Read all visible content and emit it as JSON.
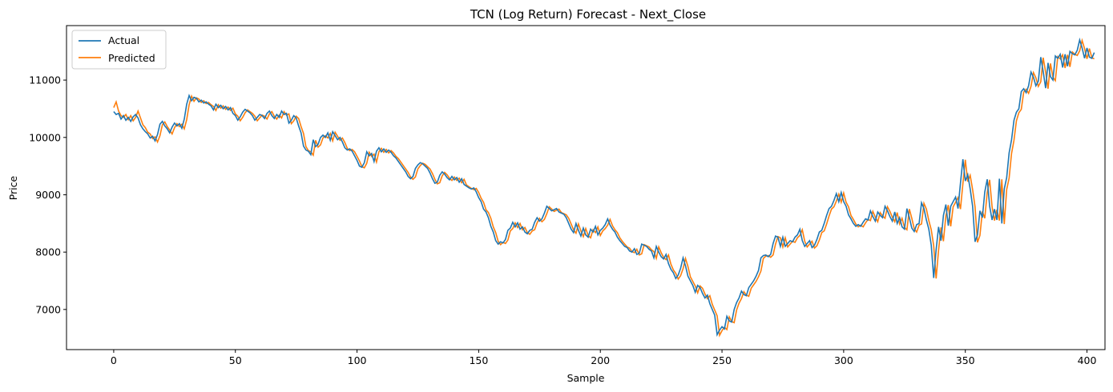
{
  "chart_data": {
    "type": "line",
    "title": "TCN (Log Return) Forecast - Next_Close",
    "xlabel": "Sample",
    "ylabel": "Price",
    "xlim": [
      -19.4,
      407.4
    ],
    "ylim": [
      6300,
      11950
    ],
    "xticks": [
      0,
      50,
      100,
      150,
      200,
      250,
      300,
      350,
      400
    ],
    "yticks": [
      7000,
      8000,
      9000,
      10000,
      11000
    ],
    "grid": false,
    "legend_position": "top-left",
    "colors": {
      "Actual": "#1f77b4",
      "Predicted": "#ff7f0e"
    },
    "series": [
      {
        "name": "Actual",
        "x_start": 0,
        "values": [
          10450,
          10400,
          10420,
          10320,
          10380,
          10300,
          10350,
          10280,
          10360,
          10400,
          10340,
          10220,
          10150,
          10100,
          10060,
          9990,
          10020,
          9940,
          10050,
          10230,
          10280,
          10200,
          10150,
          10080,
          10180,
          10250,
          10200,
          10240,
          10160,
          10320,
          10580,
          10730,
          10640,
          10700,
          10680,
          10620,
          10650,
          10600,
          10620,
          10580,
          10550,
          10480,
          10580,
          10520,
          10560,
          10500,
          10540,
          10480,
          10520,
          10420,
          10380,
          10300,
          10360,
          10440,
          10490,
          10460,
          10430,
          10380,
          10300,
          10350,
          10400,
          10380,
          10330,
          10420,
          10460,
          10380,
          10330,
          10400,
          10350,
          10460,
          10400,
          10420,
          10250,
          10300,
          10380,
          10340,
          10200,
          10080,
          9850,
          9780,
          9760,
          9700,
          9960,
          9840,
          9880,
          10000,
          10040,
          10000,
          10080,
          9950,
          10100,
          10030,
          9960,
          10000,
          9920,
          9820,
          9780,
          9800,
          9760,
          9680,
          9600,
          9500,
          9480,
          9560,
          9750,
          9680,
          9720,
          9580,
          9760,
          9820,
          9750,
          9800,
          9740,
          9780,
          9740,
          9680,
          9640,
          9580,
          9520,
          9460,
          9400,
          9320,
          9280,
          9320,
          9460,
          9520,
          9560,
          9540,
          9500,
          9460,
          9380,
          9280,
          9200,
          9220,
          9340,
          9400,
          9360,
          9300,
          9260,
          9320,
          9260,
          9300,
          9220,
          9280,
          9180,
          9150,
          9120,
          9100,
          9120,
          9050,
          8950,
          8880,
          8750,
          8700,
          8600,
          8450,
          8350,
          8200,
          8140,
          8180,
          8160,
          8220,
          8380,
          8420,
          8520,
          8440,
          8510,
          8400,
          8440,
          8350,
          8320,
          8380,
          8400,
          8520,
          8600,
          8540,
          8580,
          8680,
          8800,
          8760,
          8720,
          8740,
          8760,
          8700,
          8680,
          8660,
          8600,
          8500,
          8400,
          8340,
          8500,
          8380,
          8280,
          8420,
          8300,
          8260,
          8400,
          8350,
          8450,
          8300,
          8380,
          8420,
          8480,
          8580,
          8470,
          8400,
          8350,
          8260,
          8200,
          8150,
          8100,
          8080,
          8020,
          8000,
          8060,
          7960,
          7980,
          8140,
          8120,
          8100,
          8050,
          8020,
          7900,
          8100,
          8000,
          7920,
          7880,
          7960,
          7800,
          7700,
          7640,
          7540,
          7600,
          7720,
          7900,
          7760,
          7580,
          7500,
          7420,
          7300,
          7420,
          7380,
          7280,
          7200,
          7250,
          7100,
          7000,
          6900,
          6560,
          6640,
          6700,
          6660,
          6880,
          6800,
          6780,
          7000,
          7120,
          7200,
          7320,
          7260,
          7240,
          7380,
          7440,
          7500,
          7580,
          7680,
          7900,
          7940,
          7950,
          7920,
          7960,
          8150,
          8280,
          8260,
          8100,
          8260,
          8100,
          8150,
          8200,
          8180,
          8260,
          8300,
          8400,
          8200,
          8100,
          8150,
          8200,
          8080,
          8120,
          8220,
          8350,
          8380,
          8500,
          8640,
          8760,
          8800,
          8900,
          9020,
          8880,
          9040,
          8880,
          8800,
          8650,
          8580,
          8500,
          8450,
          8480,
          8450,
          8520,
          8580,
          8560,
          8720,
          8620,
          8540,
          8700,
          8640,
          8600,
          8800,
          8720,
          8620,
          8540,
          8700,
          8500,
          8600,
          8440,
          8400,
          8760,
          8600,
          8420,
          8360,
          8480,
          8500,
          8860,
          8760,
          8560,
          8400,
          8120,
          7550,
          8040,
          8440,
          8200,
          8640,
          8830,
          8460,
          8800,
          8880,
          8960,
          8760,
          9200,
          9620,
          9240,
          9350,
          9100,
          8800,
          8180,
          8300,
          8720,
          8600,
          9050,
          9270,
          8800,
          8560,
          8750,
          8560,
          9280,
          8500,
          9100,
          9300,
          9730,
          9960,
          10300,
          10440,
          10500,
          10800,
          10850,
          10780,
          10900,
          11140,
          11050,
          10900,
          10980,
          11400,
          11150,
          10860,
          11300,
          11060,
          11000,
          11420,
          11380,
          11450,
          11220,
          11450,
          11240,
          11500,
          11460,
          11440,
          11520,
          11700,
          11560,
          11380,
          11560,
          11400,
          11380,
          11480
        ]
      },
      {
        "name": "Predicted",
        "x_start": 0,
        "values": [
          10520,
          10620,
          10460,
          10380,
          10350,
          10400,
          10310,
          10380,
          10290,
          10350,
          10460,
          10340,
          10220,
          10170,
          10090,
          10060,
          9980,
          10010,
          9920,
          10030,
          10220,
          10270,
          10190,
          10130,
          10060,
          10170,
          10240,
          10190,
          10230,
          10150,
          10310,
          10570,
          10720,
          10630,
          10690,
          10670,
          10610,
          10640,
          10590,
          10610,
          10570,
          10540,
          10470,
          10570,
          10510,
          10550,
          10490,
          10530,
          10470,
          10510,
          10410,
          10370,
          10290,
          10350,
          10430,
          10480,
          10450,
          10420,
          10370,
          10290,
          10340,
          10390,
          10370,
          10320,
          10410,
          10450,
          10370,
          10320,
          10390,
          10340,
          10450,
          10390,
          10410,
          10240,
          10290,
          10370,
          10330,
          10190,
          10070,
          9840,
          9770,
          9750,
          9690,
          9950,
          9830,
          9870,
          9990,
          10030,
          9990,
          10070,
          9940,
          10090,
          10020,
          9950,
          9990,
          9910,
          9810,
          9770,
          9790,
          9750,
          9670,
          9590,
          9490,
          9470,
          9550,
          9740,
          9670,
          9710,
          9570,
          9750,
          9810,
          9740,
          9790,
          9730,
          9770,
          9730,
          9670,
          9630,
          9570,
          9510,
          9450,
          9390,
          9310,
          9270,
          9310,
          9450,
          9510,
          9550,
          9530,
          9490,
          9450,
          9370,
          9270,
          9190,
          9210,
          9330,
          9390,
          9350,
          9290,
          9250,
          9310,
          9250,
          9290,
          9210,
          9270,
          9170,
          9140,
          9110,
          9090,
          9110,
          9040,
          8940,
          8870,
          8740,
          8690,
          8590,
          8440,
          8340,
          8190,
          8130,
          8170,
          8150,
          8210,
          8370,
          8410,
          8510,
          8430,
          8500,
          8390,
          8430,
          8340,
          8310,
          8370,
          8390,
          8510,
          8590,
          8530,
          8570,
          8670,
          8790,
          8750,
          8710,
          8730,
          8750,
          8690,
          8670,
          8650,
          8590,
          8490,
          8390,
          8330,
          8490,
          8370,
          8270,
          8410,
          8290,
          8250,
          8390,
          8340,
          8440,
          8290,
          8370,
          8410,
          8470,
          8570,
          8460,
          8390,
          8340,
          8250,
          8190,
          8140,
          8090,
          8070,
          8010,
          7990,
          8050,
          7950,
          7970,
          8130,
          8110,
          8090,
          8040,
          8010,
          7890,
          8090,
          7990,
          7910,
          7870,
          7950,
          7790,
          7690,
          7630,
          7530,
          7590,
          7710,
          7890,
          7750,
          7570,
          7490,
          7410,
          7290,
          7410,
          7370,
          7270,
          7190,
          7240,
          7090,
          6990,
          6890,
          6550,
          6630,
          6690,
          6650,
          6870,
          6790,
          6770,
          6990,
          7110,
          7190,
          7310,
          7250,
          7230,
          7370,
          7430,
          7490,
          7570,
          7670,
          7890,
          7930,
          7940,
          7910,
          7950,
          8140,
          8270,
          8250,
          8090,
          8250,
          8090,
          8140,
          8190,
          8170,
          8250,
          8290,
          8390,
          8190,
          8090,
          8140,
          8190,
          8070,
          8110,
          8210,
          8340,
          8370,
          8490,
          8630,
          8750,
          8790,
          8890,
          9010,
          8870,
          9030,
          8870,
          8790,
          8640,
          8570,
          8490,
          8440,
          8470,
          8440,
          8510,
          8570,
          8550,
          8710,
          8610,
          8530,
          8690,
          8630,
          8590,
          8790,
          8710,
          8610,
          8530,
          8690,
          8490,
          8590,
          8430,
          8390,
          8750,
          8590,
          8410,
          8350,
          8470,
          8490,
          8850,
          8750,
          8550,
          8390,
          8110,
          7540,
          8030,
          8430,
          8190,
          8630,
          8820,
          8450,
          8790,
          8870,
          8950,
          8750,
          9190,
          9610,
          9230,
          9340,
          9090,
          8790,
          8170,
          8290,
          8710,
          8590,
          9040,
          9260,
          8790,
          8550,
          8740,
          8550,
          9270,
          8490,
          9090,
          9290,
          9720,
          9950,
          10290,
          10430,
          10490,
          10790,
          10840,
          10770,
          10890,
          11130,
          11040,
          10890,
          10970,
          11390,
          11140,
          10850,
          11290,
          11050,
          10990,
          11410,
          11370,
          11440,
          11210,
          11440,
          11230,
          11490,
          11450,
          11430,
          11510,
          11690,
          11550,
          11370,
          11550,
          11390,
          11370
        ]
      }
    ]
  }
}
